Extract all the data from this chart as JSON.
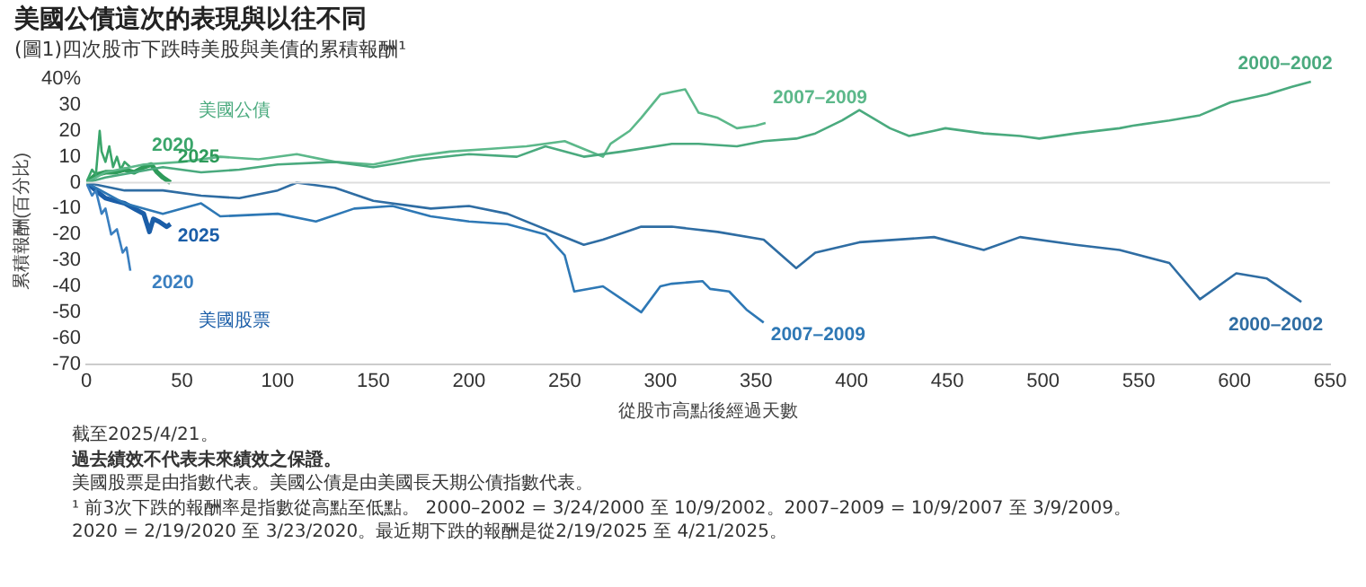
{
  "chart_data": {
    "type": "line",
    "title": "美國公債這次的表現與以往不同",
    "subtitle": "(圖1)四次股市下跌時美股與美債的累積報酬¹",
    "xlabel": "從股市高點後經過天數",
    "ylabel": "累積報酬(百分比)",
    "xlim": [
      0,
      650
    ],
    "xticks": [
      0,
      50,
      100,
      150,
      200,
      250,
      300,
      350,
      400,
      450,
      500,
      550,
      600,
      650
    ],
    "ylim": [
      -70,
      40
    ],
    "yticks": [
      {
        "value": 40,
        "label": "40%"
      },
      30,
      20,
      10,
      0,
      -10,
      -20,
      -30,
      -40,
      -50,
      -60,
      -70
    ],
    "grid": false,
    "legend": false,
    "marker": "none",
    "line_style": "solid",
    "ref_lines": [
      {
        "axis": "y",
        "value": 0,
        "color": "#dddddd"
      }
    ],
    "series": [
      {
        "name": "2000–2002",
        "color": "#4aaa7e",
        "x": [
          0,
          10,
          25,
          40,
          60,
          80,
          100,
          130,
          150,
          175,
          200,
          225,
          240,
          260,
          280,
          306,
          320,
          340,
          354,
          371,
          381,
          395,
          404,
          420,
          430,
          443,
          449,
          469,
          488,
          498,
          517,
          540,
          547,
          566,
          582,
          598,
          617,
          630,
          640
        ],
        "values": [
          0,
          2,
          4,
          6,
          4,
          5,
          7,
          8,
          6,
          9,
          11,
          10,
          14,
          10,
          12,
          15,
          15,
          14,
          16,
          17,
          19,
          24,
          28,
          21,
          18,
          20,
          21,
          19,
          18,
          17,
          19,
          21,
          22,
          24,
          26,
          31,
          34,
          37,
          39
        ]
      },
      {
        "name": "2007–2009",
        "color": "#5cb88a",
        "x": [
          0,
          10,
          30,
          50,
          70,
          90,
          110,
          130,
          150,
          170,
          190,
          210,
          230,
          250,
          260,
          270,
          274,
          284,
          290,
          300,
          306,
          313,
          320,
          330,
          340,
          350,
          355
        ],
        "values": [
          0,
          4,
          7,
          8,
          10,
          9,
          11,
          8,
          7,
          10,
          12,
          13,
          14,
          16,
          13,
          10,
          15,
          20,
          25,
          34,
          35,
          36,
          27,
          25,
          21,
          22,
          23
        ]
      },
      {
        "name": "2020",
        "color": "#3aa56a",
        "x": [
          0,
          3,
          5,
          7,
          8,
          10,
          12,
          14,
          16,
          18,
          20,
          23
        ],
        "values": [
          0,
          5,
          3,
          20,
          12,
          8,
          14,
          6,
          10,
          5,
          8,
          6
        ]
      },
      {
        "name": "2025",
        "color": "#2e9b5a",
        "x": [
          0,
          5,
          10,
          15,
          20,
          25,
          30,
          34,
          37,
          40,
          44
        ],
        "values": [
          0,
          3,
          4,
          4,
          5,
          4,
          6,
          7,
          4,
          2,
          0
        ]
      },
      {
        "name": "2000–2002",
        "color": "#2f6da3",
        "x": [
          0,
          20,
          40,
          60,
          80,
          100,
          110,
          130,
          150,
          180,
          200,
          220,
          240,
          260,
          270,
          290,
          306,
          330,
          354,
          371,
          381,
          404,
          443,
          469,
          488,
          517,
          540,
          566,
          582,
          601,
          617,
          635
        ],
        "values": [
          0,
          -3,
          -3,
          -5,
          -6,
          -3,
          0,
          -2,
          -7,
          -10,
          -9,
          -12,
          -18,
          -24,
          -22,
          -17,
          -17,
          -19,
          -22,
          -33,
          -27,
          -23,
          -21,
          -26,
          -21,
          -24,
          -26,
          -31,
          -45,
          -35,
          -37,
          -46
        ]
      },
      {
        "name": "2007–2009",
        "color": "#2e78b5",
        "x": [
          0,
          20,
          40,
          60,
          70,
          100,
          120,
          140,
          160,
          180,
          200,
          220,
          240,
          250,
          255,
          270,
          280,
          290,
          300,
          306,
          322,
          326,
          336,
          345,
          354
        ],
        "values": [
          0,
          -8,
          -12,
          -8,
          -13,
          -12,
          -15,
          -10,
          -9,
          -13,
          -15,
          -16,
          -20,
          -28,
          -42,
          -40,
          -45,
          -50,
          -40,
          -39,
          -38,
          -41,
          -42,
          -49,
          -54
        ]
      },
      {
        "name": "2020",
        "color": "#3a7fc0",
        "x": [
          0,
          3,
          5,
          8,
          10,
          13,
          16,
          19,
          21,
          23
        ],
        "values": [
          0,
          -5,
          -3,
          -12,
          -10,
          -20,
          -18,
          -27,
          -25,
          -34
        ]
      },
      {
        "name": "2025",
        "color": "#1b5ea8",
        "x": [
          0,
          5,
          10,
          15,
          20,
          25,
          30,
          33,
          35,
          38,
          42,
          44
        ],
        "values": [
          0,
          -3,
          -6,
          -7,
          -8,
          -10,
          -12,
          -19,
          -14,
          -15,
          -17,
          -16
        ]
      }
    ],
    "annotations": [
      "美國公債",
      "美國股票",
      "截至2025/4/21。",
      "過去績效不代表未來績效之保證。",
      "美國股票是由指數代表。美國公債是由美國長天期公債指數代表。",
      "¹ 前3次下跌的報酬率是指數從高點至低點。 2000–2002 = 3/24/2000 至 10/9/2002。2007–2009 = 10/9/2007 至 3/9/2009。",
      "2020 = 2/19/2020 至 3/23/2020。最近期下跌的報酬是從2/19/2025 至 4/21/2025。"
    ]
  }
}
